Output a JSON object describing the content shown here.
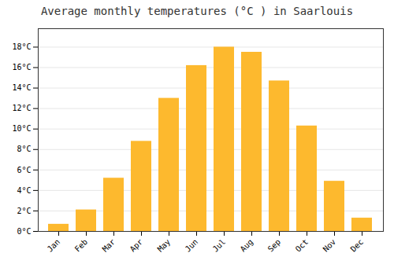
{
  "chart_data": {
    "type": "bar",
    "title": "Average monthly temperatures (°C ) in Saarlouis",
    "categories": [
      "Jan",
      "Feb",
      "Mar",
      "Apr",
      "May",
      "Jun",
      "Jul",
      "Aug",
      "Sep",
      "Oct",
      "Nov",
      "Dec"
    ],
    "values": [
      0.7,
      2.1,
      5.2,
      8.8,
      13.0,
      16.2,
      18.0,
      17.5,
      14.7,
      10.3,
      4.9,
      1.3
    ],
    "color": "#FDB92E",
    "ylim": [
      0,
      19.8
    ],
    "yticks": [
      {
        "value": 0,
        "label": "0°C"
      },
      {
        "value": 2,
        "label": "2°C"
      },
      {
        "value": 4,
        "label": "4°C"
      },
      {
        "value": 6,
        "label": "6°C"
      },
      {
        "value": 8,
        "label": "8°C"
      },
      {
        "value": 10,
        "label": "10°C"
      },
      {
        "value": 12,
        "label": "12°C"
      },
      {
        "value": 14,
        "label": "14°C"
      },
      {
        "value": 16,
        "label": "16°C"
      },
      {
        "value": 18,
        "label": "18°C"
      }
    ],
    "grid": true
  }
}
